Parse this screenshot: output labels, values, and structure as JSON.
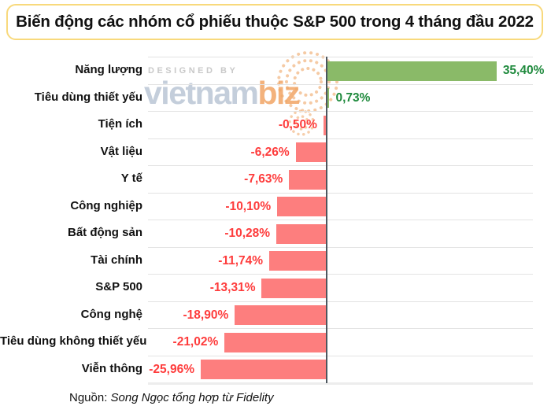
{
  "title": "Biến động các nhóm cổ phiếu thuộc S&P 500 trong 4 tháng đầu 2022",
  "watermark": {
    "designed_by": "DESIGNED BY",
    "brand_main": "vietnam",
    "brand_accent": "biz"
  },
  "source": {
    "prefix": "Nguồn: ",
    "text": "Song Ngọc tổng hợp từ Fidelity"
  },
  "colors": {
    "title_border": "#f8d97c",
    "positive_bar": "#8aba68",
    "negative_bar": "#fd7e7e",
    "positive_text": "#1f8a3d",
    "negative_text": "#fe3c3c",
    "axis": "#4d565e",
    "gridline": "#e3e3e3",
    "watermark_gray": "#c4cedb",
    "watermark_orange": "#f3b27c"
  },
  "chart_data": {
    "type": "bar",
    "orientation": "horizontal",
    "title": "Biến động các nhóm cổ phiếu thuộc S&P 500 trong 4 tháng đầu 2022",
    "categories": [
      "Năng lượng",
      "Tiêu dùng thiết yếu",
      "Tiện ích",
      "Vật liệu",
      "Y tế",
      "Công nghiệp",
      "Bất động sản",
      "Tài chính",
      "S&P 500",
      "Công nghệ",
      "Tiêu dùng không thiết yếu",
      "Viễn thông"
    ],
    "values": [
      35.4,
      0.73,
      -0.5,
      -6.26,
      -7.63,
      -10.1,
      -10.28,
      -11.74,
      -13.31,
      -18.9,
      -21.02,
      -25.96
    ],
    "value_labels": [
      "35,40%",
      "0,73%",
      "-0,50%",
      "-6,26%",
      "-7,63%",
      "-10,10%",
      "-10,28%",
      "-11,74%",
      "-13,31%",
      "-18,90%",
      "-21,02%",
      "-25,96%"
    ],
    "xlim": [
      -37,
      43
    ],
    "zero_axis": true,
    "grid": "row-separators",
    "legend": "none",
    "xlabel": "",
    "ylabel": ""
  }
}
